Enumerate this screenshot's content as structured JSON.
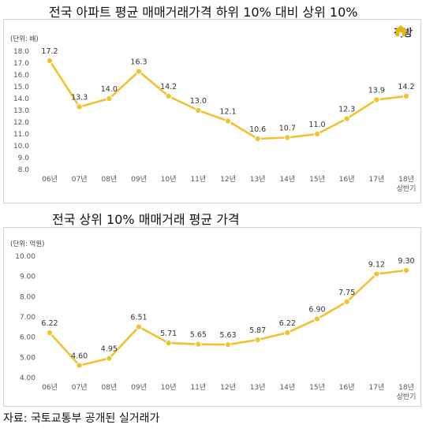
{
  "logo": {
    "text": "직방",
    "icon": "house-icon",
    "color": "#f0b400"
  },
  "source": "자료: 국토교통부 공개된 실거래가",
  "chart_data": [
    {
      "type": "line",
      "title": "전국 아파트 평균 매매거래가격 하위 10% 대비 상위 10%",
      "unit_label": "(단위: 배)",
      "categories": [
        "06년",
        "07년",
        "08년",
        "09년",
        "10년",
        "11년",
        "12년",
        "13년",
        "14년",
        "15년",
        "16년",
        "17년",
        "18년\n상반기"
      ],
      "values": [
        17.2,
        13.3,
        14.0,
        16.3,
        14.2,
        13.0,
        12.1,
        10.6,
        10.7,
        11.0,
        12.3,
        13.9,
        14.2
      ],
      "value_labels": [
        "17.2",
        "13.3",
        "14.0",
        "16.3",
        "14.2",
        "13.0",
        "12.1",
        "10.6",
        "10.7",
        "11.0",
        "12.3",
        "13.9",
        "14.2"
      ],
      "ylim": [
        8.0,
        18.0
      ],
      "yticks": [
        "8.0",
        "9.0",
        "10.0",
        "11.0",
        "12.0",
        "13.0",
        "14.0",
        "15.0",
        "16.0",
        "17.0",
        "18.0"
      ],
      "grid": false,
      "line_color": "#f2c12e"
    },
    {
      "type": "line",
      "title": "전국 상위 10% 매매거래 평균 가격",
      "unit_label": "(단위: 억원)",
      "categories": [
        "06년",
        "07년",
        "08년",
        "09년",
        "10년",
        "11년",
        "12년",
        "13년",
        "14년",
        "15년",
        "16년",
        "17년",
        "18년\n상반기"
      ],
      "values": [
        6.22,
        4.6,
        4.95,
        6.51,
        5.71,
        5.65,
        5.63,
        5.87,
        6.22,
        6.9,
        7.75,
        9.12,
        9.3
      ],
      "value_labels": [
        "6.22",
        "4.60",
        "4.95",
        "6.51",
        "5.71",
        "5.65",
        "5.63",
        "5.87",
        "6.22",
        "6.90",
        "7.75",
        "9.12",
        "9.30"
      ],
      "ylim": [
        4.0,
        10.0
      ],
      "yticks": [
        "4.00",
        "5.00",
        "6.00",
        "7.00",
        "8.00",
        "9.00",
        "10.00"
      ],
      "grid": false,
      "line_color": "#f2c12e"
    }
  ]
}
